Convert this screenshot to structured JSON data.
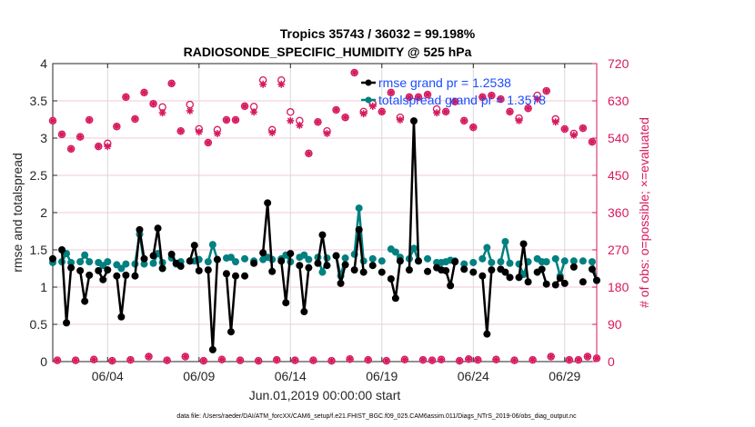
{
  "chart_data": {
    "type": "line",
    "title_line1": "Tropics 35743 / 36032 = 99.198%",
    "title_line2": "RADIOSONDE_SPECIFIC_HUMIDITY @ 525 hPa",
    "xlabel": "Jun.01,2019 00:00:00 start",
    "ylabel_left": "rmse and totalspread",
    "ylabel_right": "# of obs: o=possible; ×=evaluated",
    "footer": "data file: /Users/raeder/DAI/ATM_forcXX/CAM6_setup/f.e21.FHIST_BGC.f09_025.CAM6assim.011/Diags_NTrS_2019-06/obs_diag_output.nc",
    "x_unit": "6-hourly bins since 2019-06-01 00Z",
    "x_range_days": [
      0,
      30
    ],
    "x_ticks": [
      {
        "day": 3,
        "label": "06/04"
      },
      {
        "day": 8,
        "label": "06/09"
      },
      {
        "day": 13,
        "label": "06/14"
      },
      {
        "day": 18,
        "label": "06/19"
      },
      {
        "day": 23,
        "label": "06/24"
      },
      {
        "day": 28,
        "label": "06/29"
      }
    ],
    "ylim_left": [
      0,
      4
    ],
    "yticks_left": [
      "0",
      "0.5",
      "1",
      "1.5",
      "2",
      "2.5",
      "3",
      "3.5",
      "4"
    ],
    "ylim_right": [
      0,
      720
    ],
    "yticks_right": [
      "0",
      "90",
      "180",
      "270",
      "360",
      "450",
      "540",
      "630",
      "720"
    ],
    "grid": true,
    "legend_position": "top-center",
    "legend": [
      {
        "label": "rmse grand pr = 1.2538",
        "series": "rmse"
      },
      {
        "label": "totalspread grand pr = 1.3578",
        "series": "totalspread"
      }
    ],
    "colors": {
      "rmse": "#000000",
      "totalspread": "#008080",
      "obs": "#d6195e",
      "legend_text": "#1a4dff",
      "grid": "#f2c9d8"
    },
    "series": [
      {
        "name": "rmse",
        "bins": [
          0,
          2,
          3,
          4,
          6,
          7,
          8,
          10,
          11,
          12,
          14,
          15,
          16,
          18,
          19,
          20,
          22,
          23,
          24,
          26,
          27,
          28,
          30,
          31,
          32,
          34,
          35,
          36,
          38,
          39,
          40,
          42,
          44,
          46,
          47,
          48,
          50,
          51,
          52,
          54,
          55,
          56,
          58,
          59,
          60,
          62,
          63,
          64,
          66,
          67,
          68,
          70,
          72,
          74,
          75,
          76,
          78,
          79,
          80,
          82,
          84,
          85,
          86,
          87,
          88,
          90,
          92,
          94,
          95,
          96,
          98,
          99,
          100,
          102,
          103,
          104,
          106,
          107,
          108,
          110,
          111,
          112,
          114,
          116,
          118,
          119
        ],
        "values": [
          1.38,
          1.5,
          0.52,
          1.26,
          1.22,
          0.81,
          1.16,
          1.22,
          1.1,
          1.23,
          1.15,
          0.6,
          1.16,
          1.15,
          1.77,
          1.38,
          1.42,
          1.79,
          1.25,
          1.44,
          1.32,
          1.28,
          1.35,
          1.56,
          1.22,
          1.23,
          0.16,
          1.37,
          1.18,
          0.4,
          1.15,
          1.15,
          1.32,
          1.46,
          2.13,
          1.21,
          1.35,
          0.79,
          1.45,
          1.29,
          0.67,
          1.26,
          1.32,
          1.7,
          1.29,
          1.42,
          1.05,
          1.3,
          1.23,
          1.77,
          1.2,
          1.29,
          1.2,
          1.11,
          0.85,
          1.35,
          1.23,
          3.23,
          1.35,
          1.21,
          1.26,
          1.23,
          1.22,
          1.02,
          1.34,
          1.24,
          1.2,
          1.15,
          0.37,
          1.23,
          1.24,
          1.2,
          1.13,
          1.13,
          1.58,
          1.07,
          1.2,
          1.24,
          1.04,
          1.03,
          1.12,
          1.05,
          1.27,
          1.07,
          1.24,
          1.09
        ]
      },
      {
        "name": "totalspread",
        "bins": [
          0,
          2,
          3,
          4,
          6,
          7,
          8,
          10,
          11,
          12,
          14,
          15,
          16,
          18,
          19,
          20,
          22,
          23,
          24,
          26,
          27,
          28,
          30,
          31,
          32,
          34,
          35,
          36,
          38,
          39,
          40,
          42,
          44,
          46,
          47,
          48,
          50,
          51,
          52,
          54,
          55,
          56,
          58,
          59,
          60,
          62,
          63,
          64,
          66,
          67,
          68,
          70,
          72,
          74,
          75,
          76,
          78,
          79,
          80,
          82,
          84,
          85,
          86,
          87,
          88,
          90,
          92,
          94,
          95,
          96,
          98,
          99,
          100,
          102,
          103,
          104,
          106,
          107,
          108,
          110,
          111,
          112,
          114,
          116,
          118,
          119
        ],
        "values": [
          1.33,
          1.34,
          1.45,
          1.33,
          1.34,
          1.43,
          1.34,
          1.33,
          1.29,
          1.34,
          1.3,
          1.25,
          1.31,
          1.31,
          1.71,
          1.31,
          1.32,
          1.45,
          1.33,
          1.39,
          1.31,
          1.34,
          1.35,
          1.35,
          1.37,
          1.34,
          1.57,
          1.37,
          1.39,
          1.4,
          1.34,
          1.38,
          1.35,
          1.37,
          1.4,
          1.37,
          1.38,
          1.43,
          1.34,
          1.4,
          1.43,
          1.37,
          1.4,
          1.2,
          1.39,
          1.42,
          1.15,
          1.39,
          1.44,
          2.06,
          1.35,
          1.38,
          1.35,
          1.51,
          1.47,
          1.4,
          1.38,
          1.52,
          1.35,
          1.38,
          1.33,
          1.33,
          1.34,
          1.36,
          1.35,
          1.31,
          1.33,
          1.38,
          1.53,
          1.33,
          1.34,
          1.61,
          1.32,
          1.31,
          1.17,
          1.34,
          1.38,
          1.34,
          1.34,
          1.38,
          1.15,
          1.35,
          1.35,
          1.35,
          1.34,
          1.09
        ]
      },
      {
        "name": "obs_possible",
        "bins": [
          0,
          2,
          4,
          6,
          8,
          10,
          12,
          14,
          16,
          18,
          20,
          22,
          24,
          26,
          28,
          30,
          32,
          34,
          36,
          38,
          40,
          42,
          44,
          46,
          48,
          50,
          52,
          54,
          56,
          58,
          60,
          62,
          64,
          66,
          68,
          70,
          72,
          74,
          76,
          78,
          80,
          82,
          84,
          86,
          88,
          90,
          92,
          94,
          96,
          98,
          100,
          102,
          104,
          106,
          108,
          110,
          112,
          114,
          116,
          118
        ],
        "values": [
          582,
          549,
          514,
          543,
          584,
          520,
          527,
          568,
          639,
          586,
          650,
          623,
          615,
          672,
          557,
          621,
          562,
          529,
          560,
          584,
          584,
          617,
          616,
          680,
          560,
          680,
          603,
          582,
          503,
          579,
          557,
          608,
          590,
          698,
          604,
          623,
          604,
          650,
          590,
          639,
          639,
          645,
          610,
          604,
          628,
          582,
          566,
          639,
          643,
          634,
          604,
          588,
          612,
          643,
          654,
          586,
          562,
          551,
          564,
          531
        ]
      },
      {
        "name": "obs_evaluated",
        "bins": [
          0,
          2,
          4,
          6,
          8,
          10,
          12,
          14,
          16,
          18,
          20,
          22,
          24,
          26,
          28,
          30,
          32,
          34,
          36,
          38,
          40,
          42,
          44,
          46,
          48,
          50,
          52,
          54,
          56,
          58,
          60,
          62,
          64,
          66,
          68,
          70,
          72,
          74,
          76,
          78,
          80,
          82,
          84,
          86,
          88,
          90,
          92,
          94,
          96,
          98,
          100,
          102,
          104,
          106,
          108,
          110,
          112,
          114,
          116,
          118
        ],
        "values": [
          582,
          549,
          514,
          543,
          584,
          520,
          520,
          568,
          639,
          586,
          650,
          623,
          601,
          672,
          557,
          606,
          555,
          529,
          551,
          584,
          584,
          617,
          603,
          670,
          553,
          670,
          582,
          571,
          503,
          579,
          551,
          608,
          590,
          698,
          599,
          617,
          604,
          650,
          584,
          639,
          639,
          645,
          601,
          604,
          628,
          582,
          566,
          639,
          643,
          634,
          604,
          582,
          612,
          634,
          654,
          579,
          562,
          547,
          564,
          531
        ]
      },
      {
        "name": "obs_possible_offhour",
        "bins": [
          1,
          5,
          9,
          13,
          17,
          21,
          25,
          29,
          33,
          37,
          41,
          45,
          49,
          53,
          57,
          61,
          65,
          69,
          73,
          77,
          81,
          83,
          85,
          89,
          91,
          93,
          97,
          101,
          105,
          109,
          113,
          115,
          117,
          119
        ],
        "values": [
          3,
          3,
          5,
          2,
          4,
          12,
          3,
          12,
          2,
          5,
          3,
          2,
          4,
          3,
          3,
          2,
          6,
          4,
          2,
          5,
          4,
          3,
          5,
          2,
          6,
          4,
          5,
          3,
          4,
          12,
          4,
          4,
          12,
          8
        ]
      }
    ]
  }
}
